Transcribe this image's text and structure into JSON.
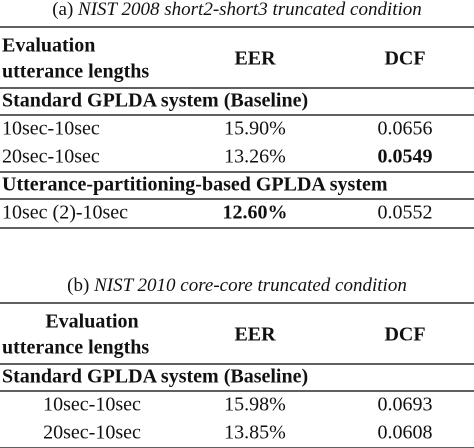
{
  "tables": [
    {
      "label": "(a)",
      "caption": "NIST 2008 short2-short3 truncated condition",
      "header": [
        [
          "Evaluation",
          "utterance lengths"
        ],
        "EER",
        "DCF"
      ],
      "sections": [
        {
          "title": "Standard GPLDA system (Baseline)",
          "rows": [
            [
              {
                "text": "10sec-10sec"
              },
              {
                "text": "15.90%"
              },
              {
                "text": "0.0656"
              }
            ],
            [
              {
                "text": "20sec-10sec"
              },
              {
                "text": "13.26%"
              },
              {
                "text": "0.0549",
                "bold": true
              }
            ]
          ]
        },
        {
          "title": "Utterance-partitioning-based GPLDA system",
          "rows": [
            [
              {
                "text": "10sec (2)-10sec"
              },
              {
                "text": "12.60%",
                "bold": true
              },
              {
                "text": "0.0552"
              }
            ]
          ]
        }
      ]
    },
    {
      "label": "(b)",
      "caption": "NIST 2010 core-core truncated condition",
      "header": [
        [
          "Evaluation",
          "utterance lengths"
        ],
        "EER",
        "DCF"
      ],
      "sections": [
        {
          "title": "Standard GPLDA system (Baseline)",
          "rows": [
            [
              {
                "text": "10sec-10sec"
              },
              {
                "text": "15.98%"
              },
              {
                "text": "0.0693"
              }
            ],
            [
              {
                "text": "20sec-10sec"
              },
              {
                "text": "13.85%"
              },
              {
                "text": "0.0608"
              }
            ]
          ]
        }
      ]
    }
  ]
}
